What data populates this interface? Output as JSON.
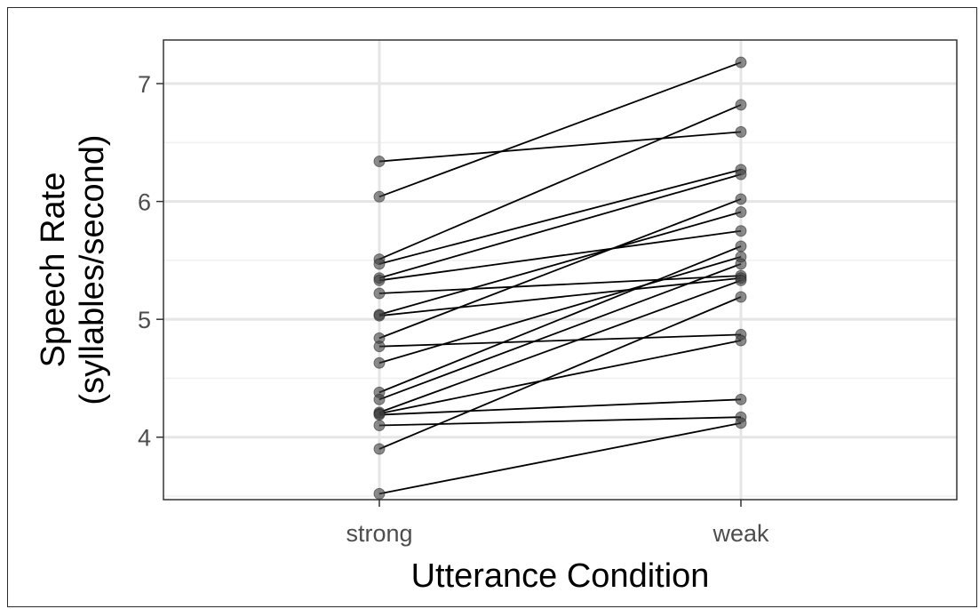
{
  "chart_data": {
    "type": "line",
    "title": "",
    "xlabel": "Utterance Condition",
    "ylabel_line1": "Speech Rate",
    "ylabel_line2": "(syllables/second)",
    "categories": [
      "strong",
      "weak"
    ],
    "yticks": [
      4,
      5,
      6,
      7
    ],
    "ylim": [
      3.47,
      7.37
    ],
    "grid": true,
    "colors": {
      "panel_border": "#333333",
      "grid_major": "#e5e5e5",
      "grid_minor": "#f0f0f0",
      "line": "#000000",
      "point": "#3d3d3d"
    },
    "pairs": [
      {
        "strong": 6.34,
        "weak": 6.59
      },
      {
        "strong": 6.04,
        "weak": 7.18
      },
      {
        "strong": 5.51,
        "weak": 6.82
      },
      {
        "strong": 5.47,
        "weak": 6.27
      },
      {
        "strong": 5.35,
        "weak": 6.23
      },
      {
        "strong": 5.33,
        "weak": 5.75
      },
      {
        "strong": 5.22,
        "weak": 5.37
      },
      {
        "strong": 5.04,
        "weak": 5.91
      },
      {
        "strong": 5.03,
        "weak": 5.35
      },
      {
        "strong": 4.84,
        "weak": 6.02
      },
      {
        "strong": 4.77,
        "weak": 4.87
      },
      {
        "strong": 4.63,
        "weak": 5.53
      },
      {
        "strong": 4.38,
        "weak": 5.62
      },
      {
        "strong": 4.32,
        "weak": 5.47
      },
      {
        "strong": 4.21,
        "weak": 5.33
      },
      {
        "strong": 4.2,
        "weak": 4.82
      },
      {
        "strong": 4.19,
        "weak": 4.32
      },
      {
        "strong": 4.1,
        "weak": 4.17
      },
      {
        "strong": 3.9,
        "weak": 5.19
      },
      {
        "strong": 3.52,
        "weak": 4.12
      }
    ]
  }
}
